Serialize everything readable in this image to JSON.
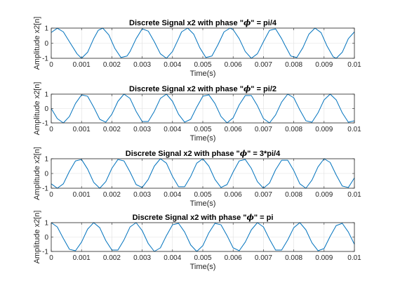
{
  "chart_data": [
    {
      "type": "line",
      "title": "Discrete Signal x2 with phase \"ϕ\" = pi/4",
      "title_prefix": "Discrete Signal x2 with phase \"",
      "title_symbol": "ϕ",
      "title_suffix": "\" = pi/4",
      "xlabel": "Time(s)",
      "ylabel": "Amplitude x2[n]",
      "xlim": [
        0,
        0.01
      ],
      "ylim": [
        -1,
        1
      ],
      "xticks": [
        0,
        0.001,
        0.002,
        0.003,
        0.004,
        0.005,
        0.006,
        0.007,
        0.008,
        0.009,
        0.01
      ],
      "xtick_labels": [
        "0",
        "0.001",
        "0.002",
        "0.003",
        "0.004",
        "0.005",
        "0.006",
        "0.007",
        "0.008",
        "0.009",
        "0.01"
      ],
      "yticks": [
        -1,
        0,
        1
      ],
      "ytick_labels": [
        "-1",
        "0",
        "1"
      ],
      "grid": true,
      "series": [
        {
          "color": "#0072BD",
          "x": [
            0,
            0.0002,
            0.0004,
            0.0006,
            0.00085,
            0.001,
            0.0012,
            0.0014,
            0.00155,
            0.0017,
            0.0019,
            0.0021,
            0.0023,
            0.0025,
            0.0026,
            0.0028,
            0.003,
            0.0032,
            0.0034,
            0.0036,
            0.0038,
            0.004,
            0.0042,
            0.0043,
            0.0045,
            0.0047,
            0.0049,
            0.0051,
            0.0053,
            0.0055,
            0.0057,
            0.0059,
            0.006,
            0.0062,
            0.0064,
            0.0066,
            0.0068,
            0.007,
            0.0072,
            0.0074,
            0.0076,
            0.0077,
            0.0079,
            0.0081,
            0.0083,
            0.0085,
            0.0087,
            0.0089,
            0.0091,
            0.0093,
            0.0094,
            0.0096,
            0.0098,
            0.01
          ],
          "y": [
            0.71,
            0.99,
            0.75,
            0.1,
            -0.7,
            -1.0,
            -0.6,
            0.3,
            0.85,
            1.0,
            0.55,
            -0.35,
            -0.95,
            -0.85,
            -0.55,
            0.3,
            0.95,
            0.8,
            0.1,
            -0.7,
            -1.0,
            -0.55,
            0.3,
            0.75,
            1.0,
            0.6,
            -0.3,
            -0.95,
            -0.85,
            -0.1,
            0.75,
            1.0,
            0.9,
            0.3,
            -0.55,
            -1.0,
            -0.7,
            0.1,
            0.85,
            0.95,
            0.3,
            -0.1,
            -0.85,
            -0.95,
            -0.3,
            0.6,
            1.0,
            0.7,
            -0.2,
            -0.9,
            -1.0,
            -0.6,
            0.3,
            0.75
          ]
        }
      ]
    },
    {
      "type": "line",
      "title": "Discrete Signal x2 with phase \"ϕ\" = pi/2",
      "title_prefix": "Discrete Signal x2 with phase \"",
      "title_symbol": "ϕ",
      "title_suffix": "\" = pi/2",
      "xlabel": "Time(s)",
      "ylabel": "Amplitude x2[n]",
      "xlim": [
        0,
        0.01
      ],
      "ylim": [
        -1,
        1
      ],
      "xticks": [
        0,
        0.001,
        0.002,
        0.003,
        0.004,
        0.005,
        0.006,
        0.007,
        0.008,
        0.009,
        0.01
      ],
      "xtick_labels": [
        "0",
        "0.001",
        "0.002",
        "0.003",
        "0.004",
        "0.005",
        "0.006",
        "0.007",
        "0.008",
        "0.009",
        "0.01"
      ],
      "yticks": [
        -1,
        0,
        1
      ],
      "ytick_labels": [
        "-1",
        "0",
        "1"
      ],
      "grid": true,
      "series": [
        {
          "color": "#0072BD",
          "x": [
            0,
            0.0002,
            0.0004,
            0.0006,
            0.0008,
            0.001,
            0.0012,
            0.0014,
            0.0016,
            0.0018,
            0.002,
            0.0022,
            0.0024,
            0.0026,
            0.0028,
            0.003,
            0.0032,
            0.0034,
            0.0036,
            0.0038,
            0.004,
            0.0042,
            0.0044,
            0.0046,
            0.0048,
            0.005,
            0.0052,
            0.0054,
            0.0056,
            0.0058,
            0.006,
            0.0062,
            0.0064,
            0.0066,
            0.0068,
            0.007,
            0.0072,
            0.0074,
            0.0076,
            0.0078,
            0.008,
            0.0082,
            0.0084,
            0.0086,
            0.0088,
            0.009,
            0.0092,
            0.0094,
            0.0096,
            0.0098,
            0.01
          ],
          "y": [
            0.0,
            -0.7,
            -1.0,
            -0.55,
            0.35,
            0.95,
            0.85,
            0.1,
            -0.75,
            -0.95,
            -0.4,
            0.5,
            1.0,
            0.7,
            -0.2,
            -0.9,
            -0.9,
            -0.2,
            0.7,
            1.0,
            0.5,
            -0.4,
            -0.95,
            -0.75,
            0.1,
            0.85,
            0.95,
            0.35,
            -0.55,
            -1.0,
            -0.65,
            0.25,
            0.9,
            0.9,
            0.2,
            -0.7,
            -1.0,
            -0.45,
            0.45,
            1.0,
            0.75,
            -0.1,
            -0.85,
            -0.95,
            -0.3,
            0.6,
            1.0,
            0.6,
            -0.3,
            -0.95,
            -0.85
          ]
        }
      ]
    },
    {
      "type": "line",
      "title": "Discrete Signal x2 with phase \"ϕ\" = 3*pi/4",
      "title_prefix": "Discrete Signal x2 with phase \"",
      "title_symbol": "ϕ",
      "title_suffix": "\" = 3*pi/4",
      "xlabel": "Time(s)",
      "ylabel": "Amplitude x2[n]",
      "xlim": [
        0,
        0.01
      ],
      "ylim": [
        -1,
        1
      ],
      "xticks": [
        0,
        0.001,
        0.002,
        0.003,
        0.004,
        0.005,
        0.006,
        0.007,
        0.008,
        0.009,
        0.01
      ],
      "xtick_labels": [
        "0",
        "0.001",
        "0.002",
        "0.003",
        "0.004",
        "0.005",
        "0.006",
        "0.007",
        "0.008",
        "0.009",
        "0.01"
      ],
      "yticks": [
        -1,
        0,
        1
      ],
      "ytick_labels": [
        "-1",
        "0",
        "1"
      ],
      "grid": true,
      "series": [
        {
          "color": "#0072BD",
          "x": [
            0,
            0.0002,
            0.0004,
            0.0006,
            0.0008,
            0.001,
            0.0012,
            0.0014,
            0.0016,
            0.0018,
            0.002,
            0.0022,
            0.0024,
            0.0026,
            0.0028,
            0.003,
            0.0032,
            0.0034,
            0.0036,
            0.0038,
            0.004,
            0.0042,
            0.0044,
            0.0046,
            0.0048,
            0.005,
            0.0052,
            0.0054,
            0.0056,
            0.0058,
            0.006,
            0.0062,
            0.0064,
            0.0066,
            0.0068,
            0.007,
            0.0072,
            0.0074,
            0.0076,
            0.0078,
            0.008,
            0.0082,
            0.0084,
            0.0086,
            0.0088,
            0.009,
            0.0092,
            0.0094,
            0.0096,
            0.0098,
            0.01
          ],
          "y": [
            -0.7,
            -1.0,
            -0.7,
            0.15,
            0.85,
            0.95,
            0.3,
            -0.6,
            -1.0,
            -0.55,
            0.35,
            0.95,
            0.85,
            0.1,
            -0.75,
            -0.95,
            -0.4,
            0.5,
            1.0,
            0.7,
            -0.2,
            -0.9,
            -0.9,
            -0.2,
            0.7,
            1.0,
            0.5,
            -0.4,
            -0.95,
            -0.75,
            0.1,
            0.85,
            0.95,
            0.35,
            -0.55,
            -1.0,
            -0.65,
            0.25,
            0.9,
            0.9,
            0.2,
            -0.7,
            -1.0,
            -0.45,
            0.45,
            1.0,
            0.75,
            -0.1,
            -0.85,
            -0.95,
            -0.3
          ]
        }
      ]
    },
    {
      "type": "line",
      "title": "Discrete Signal x2 with phase \"ϕ\" = pi",
      "title_prefix": "Discrete Signal x2 with phase \"",
      "title_symbol": "ϕ",
      "title_suffix": "\" = pi",
      "xlabel": "Time(s)",
      "ylabel": "Amplitude x2[n]",
      "xlim": [
        0,
        0.01
      ],
      "ylim": [
        -1,
        1
      ],
      "xticks": [
        0,
        0.001,
        0.002,
        0.003,
        0.004,
        0.005,
        0.006,
        0.007,
        0.008,
        0.009,
        0.01
      ],
      "xtick_labels": [
        "0",
        "0.001",
        "0.002",
        "0.003",
        "0.004",
        "0.005",
        "0.006",
        "0.007",
        "0.008",
        "0.009",
        "0.01"
      ],
      "yticks": [
        -1,
        0,
        1
      ],
      "ytick_labels": [
        "-1",
        "0",
        "1"
      ],
      "grid": true,
      "series": [
        {
          "color": "#0072BD",
          "x": [
            0,
            0.0002,
            0.0004,
            0.0006,
            0.0008,
            0.001,
            0.0012,
            0.0014,
            0.0016,
            0.0018,
            0.002,
            0.0022,
            0.0024,
            0.0026,
            0.0028,
            0.003,
            0.0032,
            0.0034,
            0.0036,
            0.0038,
            0.004,
            0.0042,
            0.0044,
            0.0046,
            0.0048,
            0.005,
            0.0052,
            0.0054,
            0.0056,
            0.0058,
            0.006,
            0.0062,
            0.0064,
            0.0066,
            0.0068,
            0.007,
            0.0072,
            0.0074,
            0.0076,
            0.0078,
            0.008,
            0.0082,
            0.0084,
            0.0086,
            0.0088,
            0.009,
            0.0092,
            0.0094,
            0.0096,
            0.0098,
            0.01
          ],
          "y": [
            1.0,
            0.7,
            -0.1,
            -0.85,
            -0.95,
            -0.35,
            0.55,
            1.0,
            0.65,
            -0.25,
            -0.9,
            -0.9,
            -0.2,
            0.7,
            1.0,
            0.45,
            -0.45,
            -1.0,
            -0.75,
            0.1,
            0.85,
            0.95,
            0.35,
            -0.55,
            -1.0,
            -0.6,
            0.3,
            0.95,
            0.85,
            0.1,
            -0.75,
            -0.95,
            -0.35,
            0.5,
            1.0,
            0.7,
            -0.15,
            -0.9,
            -0.9,
            -0.2,
            0.65,
            1.0,
            0.5,
            -0.4,
            -0.95,
            -0.8,
            0.05,
            0.8,
            0.95,
            0.35,
            -0.5
          ]
        }
      ]
    }
  ]
}
